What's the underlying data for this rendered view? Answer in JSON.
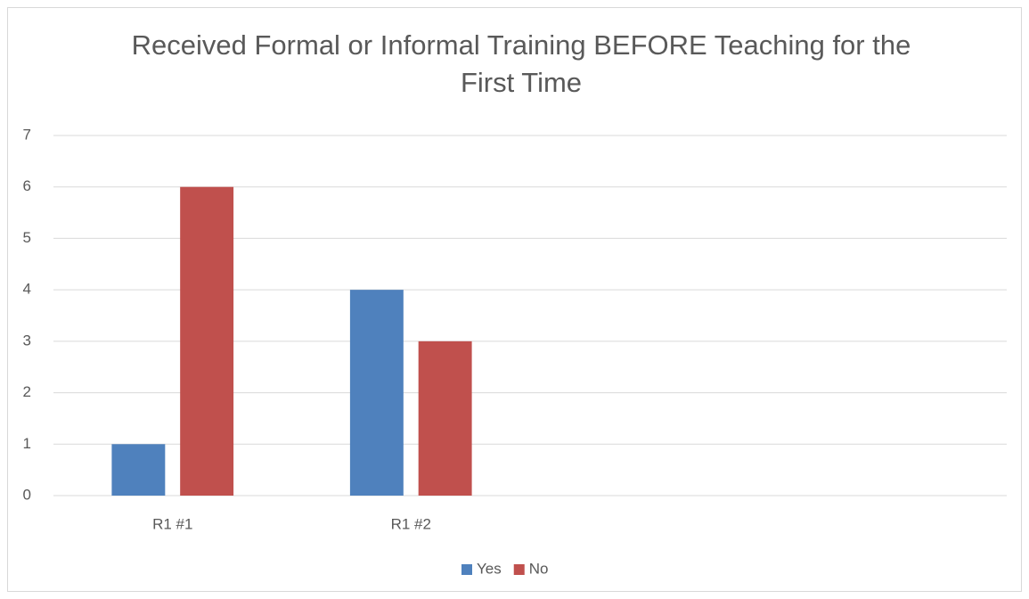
{
  "chart_data": {
    "type": "bar",
    "title": "Received Formal or Informal Training BEFORE Teaching for the First Time",
    "categories": [
      "R1 #1",
      "R1 #2",
      null,
      null
    ],
    "series": [
      {
        "name": "Yes",
        "color": "#4f81bd",
        "values": [
          1,
          4,
          null,
          null
        ]
      },
      {
        "name": "No",
        "color": "#c0504d",
        "values": [
          6,
          3,
          null,
          null
        ]
      }
    ],
    "ylim": [
      0,
      7
    ],
    "yticks": [
      0,
      1,
      2,
      3,
      4,
      5,
      6,
      7
    ],
    "grid": true,
    "legend": "bottom"
  }
}
